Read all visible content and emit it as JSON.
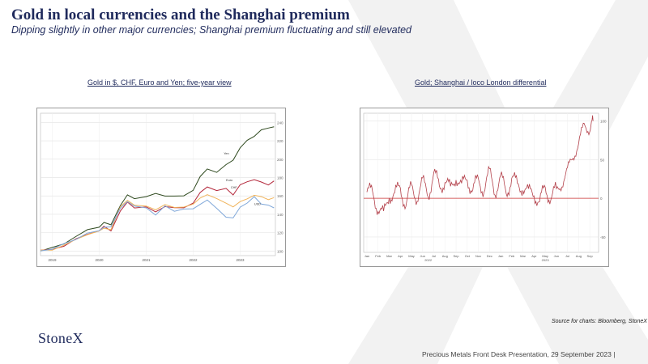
{
  "slide": {
    "title": "Gold in local currencies and the Shanghai premium",
    "subtitle": "Dipping slightly in other major currencies; Shanghai premium fluctuating and still elevated",
    "source": "Source for charts: Bloomberg, StoneX",
    "logo": "StoneX",
    "footer": "Precious Metals Front Desk Presentation, 29 September 2023 |"
  },
  "colors": {
    "title": "#1f2a5c",
    "yen": "#2f4a1f",
    "euro": "#b3263a",
    "chf": "#f0b35a",
    "usd": "#7fa7d9",
    "premium": "#b3404a",
    "zero_line": "#cc3333",
    "watermark": "#f2f2f2"
  },
  "chart_data": [
    {
      "type": "line",
      "title": "Gold in $, CHF, Euro and Yen; five-year view",
      "x_ticks": [
        "2019",
        "2020",
        "2021",
        "2022",
        "2023"
      ],
      "y_ticks": [
        "100",
        "120",
        "140",
        "160",
        "180",
        "200",
        "220",
        "240"
      ],
      "ylim": [
        95,
        250
      ],
      "x_range": [
        2018.75,
        2023.75
      ],
      "grid": true,
      "series_labels": [
        "Yen",
        "Euro",
        "CHF",
        "USD"
      ],
      "series": [
        {
          "name": "Yen",
          "color": "#2f4a1f",
          "x": [
            2018.75,
            2019.0,
            2019.25,
            2019.5,
            2019.75,
            2020.0,
            2020.1,
            2020.25,
            2020.45,
            2020.6,
            2020.75,
            2021.0,
            2021.2,
            2021.4,
            2021.6,
            2021.8,
            2022.0,
            2022.15,
            2022.3,
            2022.5,
            2022.7,
            2022.85,
            2023.0,
            2023.15,
            2023.3,
            2023.45,
            2023.6,
            2023.72
          ],
          "values": [
            100,
            103,
            109,
            115,
            123,
            127,
            130,
            129,
            150,
            160,
            158,
            159,
            162,
            161,
            159,
            160,
            167,
            180,
            190,
            186,
            193,
            200,
            212,
            220,
            226,
            231,
            234,
            236
          ]
        },
        {
          "name": "Euro",
          "color": "#b3263a",
          "x": [
            2018.75,
            2019.0,
            2019.25,
            2019.5,
            2019.75,
            2020.0,
            2020.1,
            2020.25,
            2020.45,
            2020.6,
            2020.75,
            2021.0,
            2021.2,
            2021.4,
            2021.6,
            2021.8,
            2022.0,
            2022.15,
            2022.3,
            2022.5,
            2022.7,
            2022.85,
            2023.0,
            2023.15,
            2023.3,
            2023.45,
            2023.6,
            2023.72
          ],
          "values": [
            100,
            102,
            106,
            112,
            119,
            122,
            126,
            123,
            143,
            153,
            148,
            147,
            143,
            149,
            146,
            148,
            152,
            163,
            171,
            165,
            168,
            162,
            171,
            176,
            178,
            174,
            173,
            176
          ]
        },
        {
          "name": "CHF",
          "color": "#f0b35a",
          "x": [
            2018.75,
            2019.0,
            2019.25,
            2019.5,
            2019.75,
            2020.0,
            2020.1,
            2020.25,
            2020.45,
            2020.6,
            2020.75,
            2021.0,
            2021.2,
            2021.4,
            2021.6,
            2021.8,
            2022.0,
            2022.15,
            2022.3,
            2022.5,
            2022.7,
            2022.85,
            2023.0,
            2023.15,
            2023.3,
            2023.45,
            2023.6,
            2023.72
          ],
          "values": [
            100,
            102,
            106,
            112,
            119,
            121,
            125,
            124,
            147,
            156,
            150,
            148,
            146,
            150,
            147,
            149,
            150,
            158,
            162,
            156,
            153,
            148,
            153,
            158,
            160,
            159,
            157,
            157
          ]
        },
        {
          "name": "USD",
          "color": "#7fa7d9",
          "x": [
            2018.75,
            2019.0,
            2019.25,
            2019.5,
            2019.75,
            2020.0,
            2020.1,
            2020.25,
            2020.45,
            2020.6,
            2020.75,
            2021.0,
            2021.2,
            2021.4,
            2021.6,
            2021.8,
            2022.0,
            2022.15,
            2022.3,
            2022.5,
            2022.7,
            2022.85,
            2023.0,
            2023.15,
            2023.3,
            2023.45,
            2023.6,
            2023.72
          ],
          "values": [
            100,
            103,
            107,
            113,
            120,
            121,
            127,
            126,
            146,
            155,
            148,
            147,
            140,
            148,
            144,
            146,
            145,
            152,
            155,
            146,
            138,
            135,
            148,
            153,
            158,
            152,
            150,
            146
          ]
        }
      ]
    },
    {
      "type": "line",
      "title": "Gold; Shanghai  / loco London  differential",
      "x_ticks": [
        "Jan",
        "Feb",
        "Mar",
        "Apr",
        "May",
        "Jun",
        "Jul",
        "Aug",
        "Sep",
        "Oct",
        "Nov",
        "Dec",
        "Jan",
        "Feb",
        "Mar",
        "Apr",
        "May",
        "Jun",
        "Jul",
        "Aug",
        "Sep"
      ],
      "x_year_labels": [
        "2022",
        "2023"
      ],
      "y_ticks": [
        "-50",
        "0",
        "50",
        "100"
      ],
      "ylim": [
        -70,
        110
      ],
      "grid": true,
      "zero_line": true,
      "series": [
        {
          "name": "",
          "color": "#b3404a",
          "months": [
            0,
            0.5,
            1,
            1.5,
            2,
            2.5,
            3,
            3.5,
            4,
            4.5,
            5,
            5.5,
            6,
            6.5,
            7,
            7.5,
            8,
            8.5,
            9,
            9.5,
            10,
            10.5,
            11,
            11.5,
            12,
            12.5,
            13,
            13.5,
            14,
            14.5,
            15,
            15.5,
            16,
            16.5,
            17,
            17.5,
            18,
            18.5,
            19,
            19.5,
            20,
            20.3
          ],
          "values": [
            8,
            5,
            -10,
            -25,
            8,
            2,
            15,
            -8,
            12,
            4,
            18,
            8,
            30,
            15,
            25,
            8,
            32,
            12,
            28,
            10,
            22,
            14,
            30,
            12,
            24,
            8,
            28,
            14,
            18,
            4,
            10,
            -8,
            14,
            2,
            8,
            20,
            35,
            55,
            70,
            95,
            90,
            100
          ]
        }
      ]
    }
  ]
}
